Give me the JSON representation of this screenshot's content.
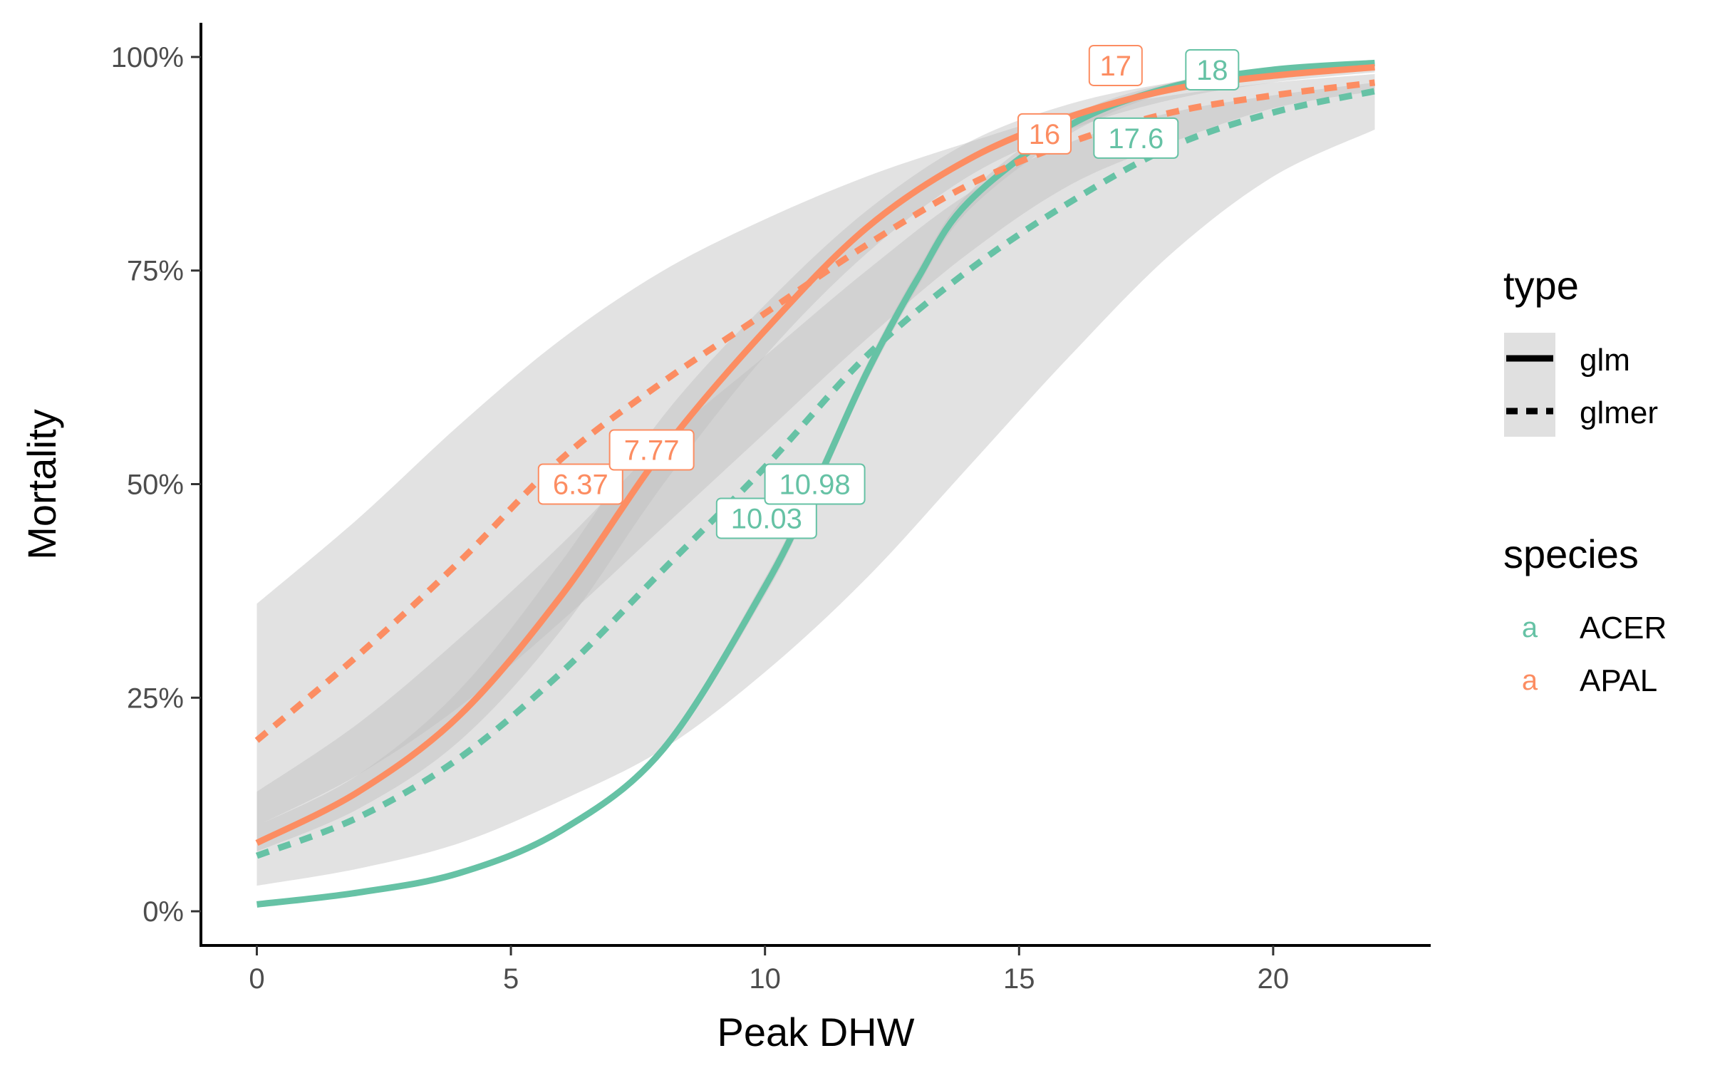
{
  "chart_data": {
    "type": "line",
    "xlabel": "Peak DHW",
    "ylabel": "Mortality",
    "xlim": [
      -1.1,
      23.1
    ],
    "ylim": [
      -0.04,
      1.04
    ],
    "xticks": [
      0,
      5,
      10,
      15,
      20
    ],
    "xtick_labels": [
      "0",
      "5",
      "10",
      "15",
      "20"
    ],
    "yticks": [
      0,
      0.25,
      0.5,
      0.75,
      1.0
    ],
    "ytick_labels": [
      "0%",
      "25%",
      "50%",
      "75%",
      "100%"
    ],
    "grid": false,
    "legend_position": "right",
    "colors": {
      "ACER": "#66c2a5",
      "APAL": "#fc8d62",
      "ribbon": "#bebebe"
    },
    "series": [
      {
        "species": "ACER",
        "type": "glm",
        "linestyle": "solid",
        "x": [
          0,
          2,
          4,
          6,
          8,
          10,
          11,
          12,
          13,
          14,
          16,
          18,
          20,
          22
        ],
        "y": [
          0.008,
          0.022,
          0.045,
          0.095,
          0.19,
          0.38,
          0.5,
          0.63,
          0.74,
          0.83,
          0.92,
          0.965,
          0.985,
          0.993
        ],
        "ci_lower": [
          0.008,
          0.022,
          0.045,
          0.095,
          0.185,
          0.37,
          0.49,
          0.62,
          0.73,
          0.82,
          0.91,
          0.96,
          0.98,
          0.99
        ],
        "ci_upper": [
          0.008,
          0.022,
          0.045,
          0.095,
          0.195,
          0.39,
          0.51,
          0.64,
          0.75,
          0.84,
          0.93,
          0.97,
          0.988,
          0.995
        ]
      },
      {
        "species": "APAL",
        "type": "glm",
        "linestyle": "solid",
        "x": [
          0,
          2,
          4,
          6,
          8,
          10,
          12,
          14,
          16,
          18,
          20,
          22
        ],
        "y": [
          0.08,
          0.14,
          0.23,
          0.37,
          0.54,
          0.68,
          0.8,
          0.88,
          0.93,
          0.962,
          0.978,
          0.988
        ],
        "ci_lower": [
          0.07,
          0.12,
          0.2,
          0.33,
          0.5,
          0.65,
          0.77,
          0.86,
          0.915,
          0.95,
          0.97,
          0.982
        ],
        "ci_upper": [
          0.1,
          0.16,
          0.26,
          0.41,
          0.58,
          0.71,
          0.82,
          0.9,
          0.945,
          0.97,
          0.985,
          0.993
        ]
      },
      {
        "species": "ACER",
        "type": "glmer",
        "linestyle": "dashed",
        "x": [
          0,
          2,
          4,
          6,
          8,
          10,
          12,
          14,
          16,
          18,
          20,
          22
        ],
        "y": [
          0.065,
          0.11,
          0.18,
          0.28,
          0.4,
          0.52,
          0.65,
          0.75,
          0.83,
          0.895,
          0.935,
          0.96
        ],
        "ci_lower": [
          0.03,
          0.05,
          0.08,
          0.13,
          0.19,
          0.28,
          0.39,
          0.52,
          0.65,
          0.77,
          0.86,
          0.915
        ],
        "ci_upper": [
          0.36,
          0.46,
          0.57,
          0.67,
          0.75,
          0.81,
          0.86,
          0.9,
          0.935,
          0.955,
          0.97,
          0.98
        ]
      },
      {
        "species": "APAL",
        "type": "glmer",
        "linestyle": "dashed",
        "x": [
          0,
          2,
          4,
          6,
          8,
          10,
          12,
          14,
          16,
          18,
          20,
          22
        ],
        "y": [
          0.2,
          0.3,
          0.41,
          0.53,
          0.62,
          0.7,
          0.78,
          0.85,
          0.9,
          0.935,
          0.955,
          0.97
        ],
        "ci_lower": [
          0.1,
          0.16,
          0.24,
          0.34,
          0.45,
          0.56,
          0.67,
          0.77,
          0.85,
          0.9,
          0.94,
          0.96
        ],
        "ci_upper": [
          0.14,
          0.22,
          0.32,
          0.43,
          0.55,
          0.65,
          0.75,
          0.84,
          0.9,
          0.935,
          0.955,
          0.97
        ]
      }
    ],
    "annotations": [
      {
        "label": "6.37",
        "x": 6.37,
        "y": 0.5,
        "species": "APAL"
      },
      {
        "label": "7.77",
        "x": 7.77,
        "y": 0.54,
        "species": "APAL"
      },
      {
        "label": "10.03",
        "x": 10.03,
        "y": 0.46,
        "species": "ACER"
      },
      {
        "label": "10.98",
        "x": 10.98,
        "y": 0.5,
        "species": "ACER"
      },
      {
        "label": "16",
        "x": 15.5,
        "y": 0.91,
        "species": "APAL"
      },
      {
        "label": "17",
        "x": 16.9,
        "y": 0.99,
        "species": "APAL"
      },
      {
        "label": "17.6",
        "x": 17.3,
        "y": 0.905,
        "species": "ACER"
      },
      {
        "label": "18",
        "x": 18.8,
        "y": 0.985,
        "species": "ACER"
      }
    ],
    "legend": {
      "type_title": "type",
      "type_items": [
        {
          "label": "glm",
          "linestyle": "solid"
        },
        {
          "label": "glmer",
          "linestyle": "dashed"
        }
      ],
      "species_title": "species",
      "species_items": [
        {
          "label": "ACER",
          "key": "a"
        },
        {
          "label": "APAL",
          "key": "a"
        }
      ]
    }
  }
}
